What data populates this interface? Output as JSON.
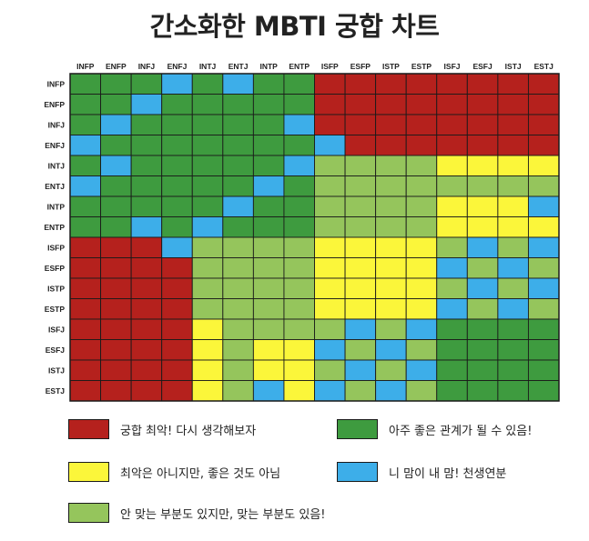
{
  "title": "간소화한 MBTI 궁합 차트",
  "chart_data": {
    "type": "heatmap",
    "columns": [
      "INFP",
      "ENFP",
      "INFJ",
      "ENFJ",
      "INTJ",
      "ENTJ",
      "INTP",
      "ENTP",
      "ISFP",
      "ESFP",
      "ISTP",
      "ESTP",
      "ISFJ",
      "ESFJ",
      "ISTJ",
      "ESTJ"
    ],
    "rows": [
      "INFP",
      "ENFP",
      "INFJ",
      "ENFJ",
      "INTJ",
      "ENTJ",
      "INTP",
      "ENTP",
      "ISFP",
      "ESFP",
      "ISTP",
      "ESTP",
      "ISFJ",
      "ESFJ",
      "ISTJ",
      "ESTJ"
    ],
    "colors": {
      "R": "#b5211d",
      "G": "#3e9b3f",
      "B": "#3daee9",
      "Y": "#fbf63a",
      "L": "#95c55c"
    },
    "grid": [
      "GGGBGBGGRRRRRRRR",
      "GGBGGGGGRRRRRRRR",
      "GBGGGGGBRRRRRRRR",
      "BGGGGGGGBRRRRRRR",
      "GBGGGGGBLLLLYYYY",
      "BGGGGGBGLLLLLLLL",
      "GGGGGBGGLLLLYYYB",
      "GGBGBGGGLLLLYYYY",
      "RRRBLLLLYYYYLBLB",
      "RRRRLLLLYYYYBLBL",
      "RRRRLLLLYYYYLBLB",
      "RRRRLLLLYYYYBLBL",
      "RRRRYLLLLBLBGGGG",
      "RRRRYLYYBLBLGGGG",
      "RRRRYLYYLBLBGGGG",
      "RRRRYLBYBLBLGGGG"
    ],
    "legend": [
      {
        "key": "R",
        "label": "궁합 최악! 다시 생각해보자"
      },
      {
        "key": "G",
        "label": "아주 좋은 관계가 될 수 있음!"
      },
      {
        "key": "Y",
        "label": "최악은 아니지만, 좋은 것도 아님"
      },
      {
        "key": "B",
        "label": "니 맘이 내 맘! 천생연분"
      },
      {
        "key": "L",
        "label": "안 맞는 부분도 있지만, 맞는 부분도 있음!"
      }
    ]
  }
}
